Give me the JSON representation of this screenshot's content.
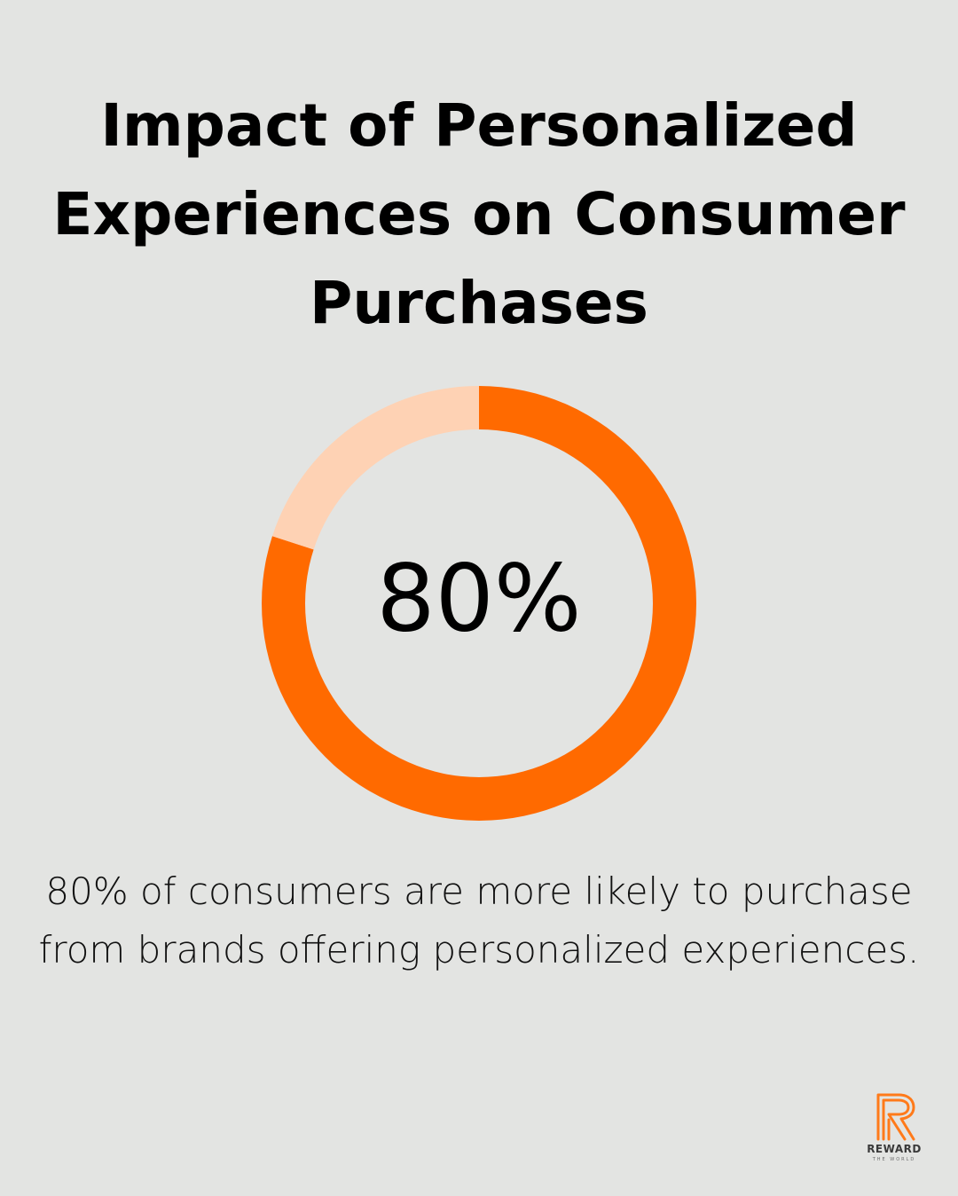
{
  "chart_data": {
    "type": "pie",
    "title": "Impact of Personalized Experiences on Consumer Purchases",
    "center_label": "80%",
    "slices": [
      {
        "value": 80,
        "color": "#ff6a00"
      },
      {
        "value": 20,
        "color": "#fed2b4"
      }
    ],
    "caption": "80% of consumers are more likely to purchase from brands offering personalized experiences."
  },
  "logo": {
    "word": "REWARD",
    "sub": "THE WORLD",
    "color": "#ff7a1a"
  }
}
